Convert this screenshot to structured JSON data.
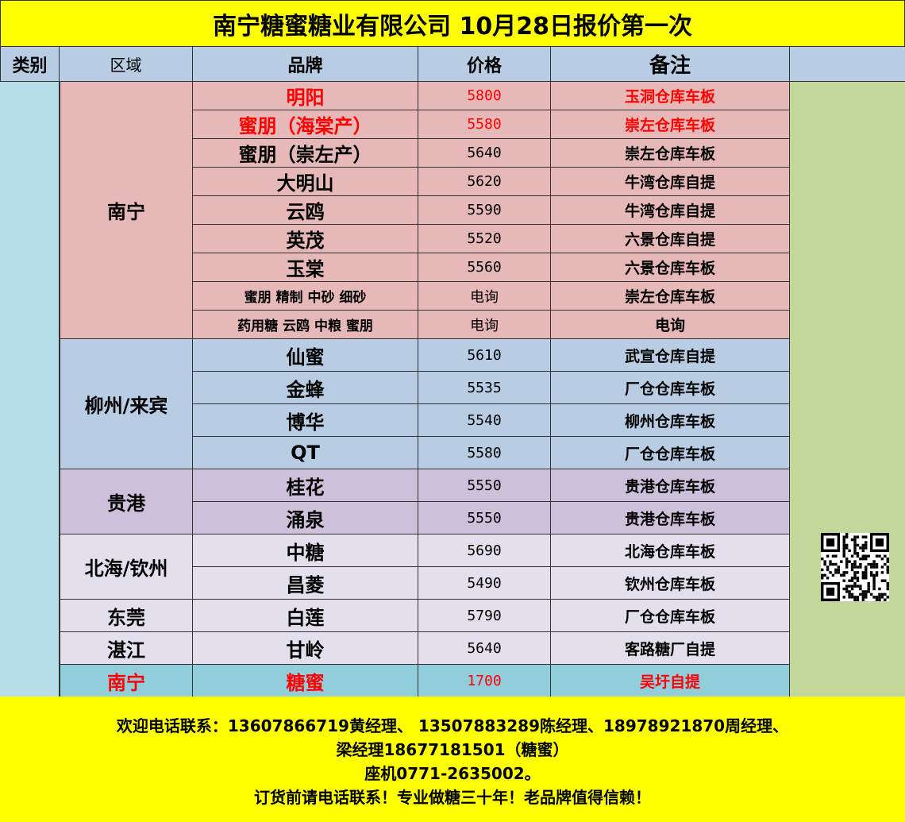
{
  "title": "南宁糖蜜糖业有限公司  10月28日报价第一次",
  "headers": {
    "category": "类别",
    "region": "区域",
    "brand": "品牌",
    "price": "价格",
    "note": "备注"
  },
  "colors": {
    "title_bg": "#ffff00",
    "header_bg": "#b8cce4",
    "nanning": "#e6b8b7",
    "liuzhou": "#b8cce4",
    "guigang": "#ccc0da",
    "light": "#e4dfec",
    "highlight": "#92cddc",
    "side": "#b7dde8",
    "right": "#c4d79b",
    "red": "#ff0000"
  },
  "groups": [
    {
      "region": "南宁",
      "color": "#e6b8b7",
      "rows": [
        {
          "brand": "明阳",
          "price": "5800",
          "note": "玉洞仓库车板",
          "red": true
        },
        {
          "brand": "蜜朋（海棠产）",
          "price": "5580",
          "note": "崇左仓库车板",
          "red": true
        },
        {
          "brand": "蜜朋（崇左产）",
          "price": "5640",
          "note": "崇左仓库车板"
        },
        {
          "brand": "大明山",
          "price": "5620",
          "note": "牛湾仓库自提"
        },
        {
          "brand": "云鸥",
          "price": "5590",
          "note": "牛湾仓库自提"
        },
        {
          "brand": "英茂",
          "price": "5520",
          "note": "六景仓库自提"
        },
        {
          "brand": "玉棠",
          "price": "5560",
          "note": "六景仓库车板"
        },
        {
          "brand": "蜜朋      精制  中砂  细砂",
          "price": "电询",
          "note": "崇左仓库车板",
          "small": true
        },
        {
          "brand": "药用糖  云鸥  中粮  蜜朋",
          "price": "电询",
          "note": "电询",
          "small": true
        }
      ]
    },
    {
      "region": "柳州/来宾",
      "color": "#b8cce4",
      "rows": [
        {
          "brand": "仙蜜",
          "price": "5610",
          "note": "武宣仓库自提"
        },
        {
          "brand": "金蜂",
          "price": "5535",
          "note": "厂仓仓库车板"
        },
        {
          "brand": "博华",
          "price": "5540",
          "note": "柳州仓库车板"
        },
        {
          "brand": "QT",
          "price": "5580",
          "note": "厂仓仓库车板"
        }
      ]
    },
    {
      "region": "贵港",
      "color": "#ccc0da",
      "rows": [
        {
          "brand": "桂花",
          "price": "5550",
          "note": "贵港仓库车板"
        },
        {
          "brand": "涌泉",
          "price": "5550",
          "note": "贵港仓库车板"
        }
      ]
    },
    {
      "region": "北海/钦州",
      "color": "#e4dfec",
      "rows": [
        {
          "brand": "中糖",
          "price": "5690",
          "note": "北海仓库车板"
        },
        {
          "brand": "昌菱",
          "price": "5490",
          "note": "钦州仓库车板"
        }
      ]
    },
    {
      "region": "东莞",
      "color": "#e4dfec",
      "rows": [
        {
          "brand": "白莲",
          "price": "5790",
          "note": "厂仓仓库车板"
        }
      ]
    },
    {
      "region": "湛江",
      "color": "#e4dfec",
      "rows": [
        {
          "brand": "甘岭",
          "price": "5640",
          "note": "客路糖厂自提"
        }
      ]
    },
    {
      "region": "南宁",
      "color": "#92cddc",
      "red": true,
      "rows": [
        {
          "brand": "糖蜜",
          "price": "1700",
          "note": "吴圩自提",
          "red": true
        }
      ]
    }
  ],
  "footer": [
    "欢迎电话联系：13607866719黄经理、 13507883289陈经理、18978921870周经理、",
    "梁经理18677181501（糖蜜）",
    "座机0771-2635002。",
    "订货前请电话联系！专业做糖三十年！老品牌值得信赖！"
  ],
  "qr_icon": "qr-code-icon"
}
